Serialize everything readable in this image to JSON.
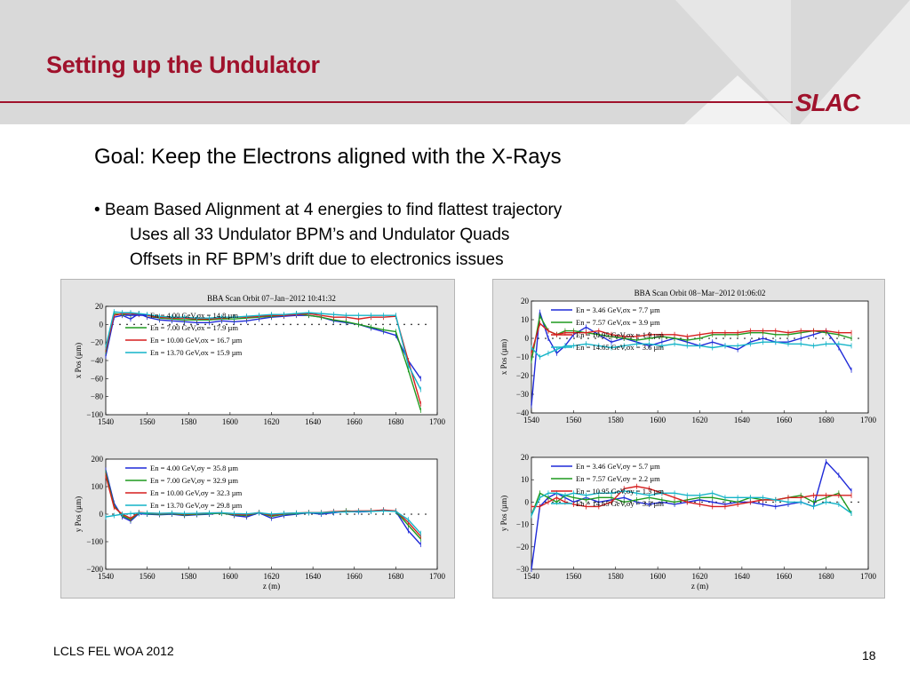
{
  "slide": {
    "title": "Setting up the Undulator",
    "logo": "SLAC",
    "goal": "Goal: Keep the Electrons aligned with the X-Rays",
    "bullet": "• Beam Based Alignment at 4 energies to find flattest trajectory",
    "sub_bullets": [
      "Uses all 33 Undulator BPM’s and Undulator Quads",
      "Offsets in RF BPM’s drift due to electronics issues"
    ],
    "footer": "LCLS FEL WOA 2012",
    "page_number": "18"
  },
  "colors": {
    "title": "#a0122c",
    "series": [
      "#1f2ad8",
      "#1f9a1f",
      "#d61e1e",
      "#14b4c8"
    ]
  },
  "chart_data": [
    {
      "type": "line",
      "title": "BBA Scan Orbit 07−Jan−2012 10:41:32",
      "xlabel": "",
      "ylabel": "x Pos  (µm)",
      "xlim": [
        1540,
        1700
      ],
      "ylim": [
        -100,
        20
      ],
      "xticks": [
        1540,
        1560,
        1580,
        1600,
        1620,
        1640,
        1660,
        1680,
        1700
      ],
      "yticks": [
        -100,
        -80,
        -60,
        -40,
        -20,
        0,
        20
      ],
      "x": [
        1540,
        1544,
        1548,
        1552,
        1556,
        1560,
        1566,
        1572,
        1578,
        1584,
        1590,
        1596,
        1602,
        1608,
        1614,
        1620,
        1626,
        1632,
        1638,
        1644,
        1650,
        1656,
        1662,
        1668,
        1674,
        1680,
        1686,
        1692
      ],
      "series": [
        {
          "name": "En =  4.00 GeV,σx =  14.8 µm",
          "values": [
            -35,
            8,
            10,
            6,
            12,
            8,
            5,
            4,
            3,
            2,
            2,
            4,
            3,
            4,
            6,
            8,
            9,
            10,
            10,
            8,
            4,
            2,
            0,
            -4,
            -8,
            -12,
            -40,
            -60
          ]
        },
        {
          "name": "En =  7.00 GeV,σx =  17.9 µm",
          "values": [
            -30,
            12,
            11,
            10,
            12,
            10,
            7,
            6,
            5,
            5,
            5,
            6,
            6,
            7,
            8,
            9,
            10,
            12,
            10,
            8,
            5,
            3,
            0,
            -3,
            -6,
            -8,
            -50,
            -95
          ]
        },
        {
          "name": "En = 10.00 GeV,σx =  16.7 µm",
          "values": [
            -28,
            10,
            12,
            12,
            11,
            10,
            8,
            7,
            7,
            6,
            6,
            7,
            8,
            8,
            9,
            10,
            10,
            11,
            12,
            10,
            8,
            8,
            6,
            8,
            8,
            9,
            -40,
            -88
          ]
        },
        {
          "name": "En = 13.70 GeV,σx =  15.9 µm",
          "values": [
            -25,
            14,
            13,
            13,
            12,
            11,
            9,
            8,
            8,
            7,
            7,
            8,
            8,
            9,
            10,
            11,
            11,
            12,
            13,
            12,
            11,
            10,
            10,
            10,
            10,
            10,
            -45,
            -72
          ]
        }
      ]
    },
    {
      "type": "line",
      "title": "",
      "xlabel": "z  (m)",
      "ylabel": "y Pos  (µm)",
      "xlim": [
        1540,
        1700
      ],
      "ylim": [
        -200,
        200
      ],
      "xticks": [
        1540,
        1560,
        1580,
        1600,
        1620,
        1640,
        1660,
        1680,
        1700
      ],
      "yticks": [
        -200,
        -100,
        0,
        100,
        200
      ],
      "x": [
        1540,
        1544,
        1548,
        1552,
        1556,
        1560,
        1566,
        1572,
        1578,
        1584,
        1590,
        1596,
        1602,
        1608,
        1614,
        1620,
        1626,
        1632,
        1638,
        1644,
        1650,
        1656,
        1662,
        1668,
        1674,
        1680,
        1686,
        1692
      ],
      "series": [
        {
          "name": "En =  4.00 GeV,σy =  35.8 µm",
          "values": [
            160,
            40,
            -10,
            -25,
            2,
            0,
            -2,
            0,
            -5,
            -2,
            0,
            5,
            -5,
            -10,
            5,
            -15,
            -5,
            0,
            5,
            0,
            5,
            10,
            8,
            10,
            15,
            10,
            -60,
            -110
          ]
        },
        {
          "name": "En =  7.00 GeV,σy =  32.9 µm",
          "values": [
            150,
            30,
            -5,
            -20,
            5,
            2,
            0,
            2,
            -3,
            0,
            2,
            3,
            -2,
            -5,
            6,
            -8,
            0,
            2,
            6,
            4,
            8,
            12,
            10,
            12,
            14,
            10,
            -40,
            -90
          ]
        },
        {
          "name": "En = 10.00 GeV,σy =  32.3 µm",
          "values": [
            140,
            25,
            0,
            -15,
            6,
            4,
            2,
            3,
            0,
            2,
            4,
            5,
            0,
            -2,
            6,
            -4,
            2,
            4,
            6,
            6,
            10,
            10,
            12,
            12,
            15,
            12,
            -30,
            -80
          ]
        },
        {
          "name": "En = 13.70 GeV,σy =  29.8 µm",
          "values": [
            -10,
            -5,
            0,
            2,
            4,
            4,
            3,
            4,
            2,
            3,
            4,
            5,
            2,
            1,
            5,
            0,
            3,
            4,
            5,
            5,
            8,
            8,
            10,
            10,
            12,
            10,
            -20,
            -70
          ]
        }
      ]
    },
    {
      "type": "line",
      "title": "BBA Scan Orbit 08−Mar−2012 01:06:02",
      "xlabel": "",
      "ylabel": "x Pos  (µm)",
      "xlim": [
        1540,
        1700
      ],
      "ylim": [
        -40,
        20
      ],
      "xticks": [
        1540,
        1560,
        1580,
        1600,
        1620,
        1640,
        1660,
        1680,
        1700
      ],
      "yticks": [
        -40,
        -30,
        -20,
        -10,
        0,
        10,
        20
      ],
      "x": [
        1540,
        1544,
        1548,
        1552,
        1556,
        1560,
        1566,
        1572,
        1578,
        1584,
        1590,
        1596,
        1602,
        1608,
        1614,
        1620,
        1626,
        1632,
        1638,
        1644,
        1650,
        1656,
        1662,
        1668,
        1674,
        1680,
        1686,
        1692
      ],
      "series": [
        {
          "name": "En =   3.46 GeV,σx =   7.7 µm",
          "values": [
            -36,
            14,
            0,
            -8,
            -4,
            2,
            6,
            2,
            -2,
            0,
            -2,
            -4,
            -2,
            0,
            -2,
            -4,
            -2,
            -4,
            -6,
            -2,
            0,
            -2,
            -2,
            0,
            2,
            4,
            -5,
            -17
          ]
        },
        {
          "name": "En =   7.57 GeV,σx =   3.9 µm",
          "values": [
            -12,
            12,
            4,
            2,
            4,
            4,
            3,
            2,
            1,
            0,
            -1,
            0,
            1,
            0,
            -1,
            0,
            2,
            2,
            2,
            3,
            3,
            2,
            2,
            3,
            4,
            3,
            2,
            0
          ]
        },
        {
          "name": "En = 10.95 GeV,σx =   1.9 µm",
          "values": [
            -8,
            8,
            4,
            2,
            3,
            3,
            3,
            4,
            2,
            1,
            1,
            2,
            2,
            2,
            1,
            2,
            3,
            3,
            3,
            4,
            4,
            4,
            3,
            4,
            4,
            4,
            3,
            3
          ]
        },
        {
          "name": "En = 14.65 GeV,σx =   3.6 µm",
          "values": [
            -5,
            -10,
            -8,
            -6,
            -4,
            -4,
            -3,
            -4,
            -5,
            -4,
            -3,
            -3,
            -4,
            -3,
            -4,
            -4,
            -5,
            -4,
            -4,
            -3,
            -2,
            -2,
            -3,
            -3,
            -4,
            -3,
            -3,
            -4
          ]
        }
      ]
    },
    {
      "type": "line",
      "title": "",
      "xlabel": "z  (m)",
      "ylabel": "y Pos  (µm)",
      "xlim": [
        1540,
        1700
      ],
      "ylim": [
        -30,
        20
      ],
      "xticks": [
        1540,
        1560,
        1580,
        1600,
        1620,
        1640,
        1660,
        1680,
        1700
      ],
      "yticks": [
        -30,
        -20,
        -10,
        0,
        10,
        20
      ],
      "x": [
        1540,
        1544,
        1548,
        1552,
        1556,
        1560,
        1566,
        1572,
        1578,
        1584,
        1590,
        1596,
        1602,
        1608,
        1614,
        1620,
        1626,
        1632,
        1638,
        1644,
        1650,
        1656,
        1662,
        1668,
        1674,
        1680,
        1686,
        1692
      ],
      "series": [
        {
          "name": "En =   3.46 GeV,σy =   5.7 µm",
          "values": [
            -30,
            -2,
            2,
            4,
            2,
            0,
            2,
            0,
            1,
            2,
            0,
            -1,
            0,
            -1,
            0,
            1,
            0,
            -1,
            0,
            0,
            -1,
            -2,
            -1,
            0,
            -2,
            18,
            12,
            5
          ]
        },
        {
          "name": "En =   7.57 GeV,σy =   2.2 µm",
          "values": [
            -6,
            4,
            2,
            0,
            3,
            2,
            1,
            2,
            2,
            0,
            1,
            2,
            1,
            0,
            1,
            2,
            2,
            1,
            0,
            2,
            1,
            1,
            2,
            3,
            0,
            2,
            4,
            -5
          ]
        },
        {
          "name": "En = 10.95 GeV,σy =   1.3 µm",
          "values": [
            -2,
            -2,
            0,
            2,
            0,
            -1,
            -2,
            -2,
            0,
            6,
            7,
            6,
            4,
            2,
            0,
            -1,
            -2,
            -2,
            -1,
            0,
            1,
            1,
            2,
            2,
            3,
            3,
            3,
            3
          ]
        },
        {
          "name": "En = 14.65 GeV,σy =   3.3 µm",
          "values": [
            -6,
            2,
            4,
            4,
            3,
            4,
            3,
            4,
            4,
            5,
            4,
            3,
            4,
            4,
            3,
            3,
            4,
            2,
            2,
            2,
            2,
            1,
            0,
            0,
            -2,
            0,
            -1,
            -5
          ]
        }
      ]
    }
  ]
}
